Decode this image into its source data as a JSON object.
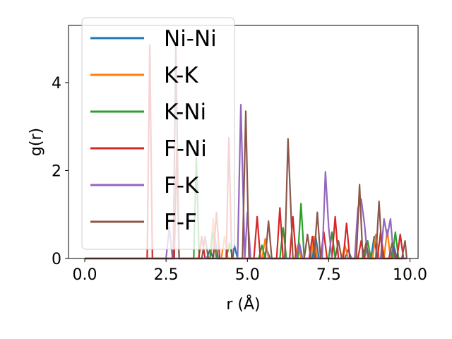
{
  "chart_data": {
    "type": "line",
    "title": "",
    "xlabel": "r (Å)",
    "ylabel": "g(r)",
    "xlim": [
      -0.5,
      10.25
    ],
    "ylim": [
      0,
      5.3
    ],
    "xticks": [
      0.0,
      2.5,
      5.0,
      7.5,
      10.0
    ],
    "xtick_labels": [
      "0.0",
      "2.5",
      "5.0",
      "7.5",
      "10.0"
    ],
    "yticks": [
      0,
      2,
      4
    ],
    "ytick_labels": [
      "0",
      "2",
      "4"
    ],
    "grid": false,
    "legend": "top-left",
    "series": [
      {
        "name": "Ni-Ni",
        "color": "#1f77b4",
        "points": [
          [
            0,
            0
          ],
          [
            3.75,
            0
          ],
          [
            3.85,
            0.2
          ],
          [
            3.95,
            0
          ],
          [
            4.0,
            0.5
          ],
          [
            4.1,
            0
          ],
          [
            4.55,
            0
          ],
          [
            4.6,
            0.3
          ],
          [
            4.7,
            0
          ],
          [
            5.5,
            0
          ],
          [
            5.6,
            0.2
          ],
          [
            5.7,
            0
          ],
          [
            6.5,
            0
          ],
          [
            6.6,
            0.25
          ],
          [
            6.7,
            0
          ],
          [
            7.0,
            0
          ],
          [
            7.1,
            0.5
          ],
          [
            7.2,
            0
          ],
          [
            8.0,
            0
          ],
          [
            8.1,
            0.2
          ],
          [
            8.2,
            0
          ],
          [
            8.8,
            0
          ],
          [
            8.9,
            0.5
          ],
          [
            9.0,
            0
          ],
          [
            9.4,
            0
          ],
          [
            9.5,
            0.3
          ],
          [
            9.6,
            0
          ],
          [
            9.9,
            0
          ]
        ]
      },
      {
        "name": "K-K",
        "color": "#ff7f0e",
        "points": [
          [
            0,
            0
          ],
          [
            3.85,
            0
          ],
          [
            3.95,
            0.9
          ],
          [
            4.05,
            0
          ],
          [
            4.2,
            0
          ],
          [
            4.3,
            0.5
          ],
          [
            4.4,
            0
          ],
          [
            5.45,
            0
          ],
          [
            5.55,
            0.45
          ],
          [
            5.65,
            0
          ],
          [
            6.45,
            0
          ],
          [
            6.55,
            0.3
          ],
          [
            6.65,
            0
          ],
          [
            6.95,
            0
          ],
          [
            7.05,
            0.5
          ],
          [
            7.15,
            0
          ],
          [
            7.9,
            0
          ],
          [
            8.0,
            0.3
          ],
          [
            8.1,
            0
          ],
          [
            8.85,
            0
          ],
          [
            8.95,
            0.55
          ],
          [
            9.05,
            0
          ],
          [
            9.2,
            0
          ],
          [
            9.3,
            0.65
          ],
          [
            9.4,
            0
          ],
          [
            9.8,
            0
          ]
        ]
      },
      {
        "name": "K-Ni",
        "color": "#2ca02c",
        "points": [
          [
            0,
            0
          ],
          [
            3.35,
            0
          ],
          [
            3.43,
            2.3
          ],
          [
            3.52,
            0
          ],
          [
            3.85,
            0
          ],
          [
            3.95,
            0.6
          ],
          [
            4.05,
            0
          ],
          [
            4.35,
            0
          ],
          [
            4.45,
            0.35
          ],
          [
            4.55,
            0
          ],
          [
            5.35,
            0
          ],
          [
            5.45,
            0.3
          ],
          [
            5.55,
            0
          ],
          [
            6.0,
            0
          ],
          [
            6.1,
            0.7
          ],
          [
            6.2,
            0
          ],
          [
            6.55,
            0
          ],
          [
            6.65,
            1.25
          ],
          [
            6.75,
            0
          ],
          [
            7.5,
            0
          ],
          [
            7.6,
            0.6
          ],
          [
            7.7,
            0
          ],
          [
            8.6,
            0
          ],
          [
            8.7,
            0.4
          ],
          [
            8.8,
            0
          ],
          [
            9.45,
            0
          ],
          [
            9.55,
            0.6
          ],
          [
            9.65,
            0
          ],
          [
            9.9,
            0
          ]
        ]
      },
      {
        "name": "F-Ni",
        "color": "#d62728",
        "points": [
          [
            0,
            0
          ],
          [
            1.92,
            0
          ],
          [
            2.0,
            4.85
          ],
          [
            2.08,
            0
          ],
          [
            2.75,
            0
          ],
          [
            2.83,
            2.5
          ],
          [
            2.9,
            0
          ],
          [
            3.5,
            0
          ],
          [
            3.6,
            0.5
          ],
          [
            3.7,
            0
          ],
          [
            3.95,
            0
          ],
          [
            4.05,
            1.05
          ],
          [
            4.15,
            0
          ],
          [
            4.35,
            0
          ],
          [
            4.43,
            2.75
          ],
          [
            4.52,
            0
          ],
          [
            5.2,
            0
          ],
          [
            5.3,
            0.95
          ],
          [
            5.4,
            0
          ],
          [
            5.9,
            0
          ],
          [
            6.0,
            1.15
          ],
          [
            6.1,
            0
          ],
          [
            6.3,
            0
          ],
          [
            6.4,
            0.95
          ],
          [
            6.5,
            0
          ],
          [
            6.9,
            0
          ],
          [
            7.0,
            0.5
          ],
          [
            7.1,
            0
          ],
          [
            7.25,
            0
          ],
          [
            7.35,
            0.6
          ],
          [
            7.45,
            0
          ],
          [
            7.6,
            0
          ],
          [
            7.7,
            0.95
          ],
          [
            7.8,
            0
          ],
          [
            7.95,
            0
          ],
          [
            8.05,
            0.8
          ],
          [
            8.15,
            0
          ],
          [
            8.4,
            0
          ],
          [
            8.5,
            0.4
          ],
          [
            8.6,
            0
          ],
          [
            9.0,
            0
          ],
          [
            9.1,
            0.6
          ],
          [
            9.2,
            0
          ],
          [
            9.6,
            0
          ],
          [
            9.7,
            0.55
          ],
          [
            9.8,
            0
          ]
        ]
      },
      {
        "name": "F-K",
        "color": "#9467bd",
        "points": [
          [
            0,
            0
          ],
          [
            2.5,
            0
          ],
          [
            2.6,
            0.7
          ],
          [
            2.7,
            0
          ],
          [
            4.7,
            0
          ],
          [
            4.8,
            3.5
          ],
          [
            4.92,
            0
          ],
          [
            5.0,
            1.05
          ],
          [
            5.1,
            0
          ],
          [
            6.5,
            0
          ],
          [
            6.6,
            0.35
          ],
          [
            6.7,
            0
          ],
          [
            7.3,
            0
          ],
          [
            7.4,
            1.97
          ],
          [
            7.5,
            0.7
          ],
          [
            7.6,
            0
          ],
          [
            8.3,
            0
          ],
          [
            8.4,
            1.15
          ],
          [
            8.5,
            1.35
          ],
          [
            8.6,
            0.8
          ],
          [
            8.7,
            0
          ],
          [
            9.1,
            0
          ],
          [
            9.2,
            0.9
          ],
          [
            9.3,
            0.5
          ],
          [
            9.4,
            0.9
          ],
          [
            9.5,
            0
          ],
          [
            9.9,
            0
          ]
        ]
      },
      {
        "name": "F-F",
        "color": "#8c564b",
        "points": [
          [
            0,
            0
          ],
          [
            2.72,
            0
          ],
          [
            2.8,
            4.85
          ],
          [
            2.9,
            0
          ],
          [
            3.6,
            0
          ],
          [
            3.7,
            0.5
          ],
          [
            3.8,
            0
          ],
          [
            4.85,
            0
          ],
          [
            4.95,
            3.35
          ],
          [
            5.05,
            0
          ],
          [
            5.55,
            0
          ],
          [
            5.65,
            0.85
          ],
          [
            5.75,
            0
          ],
          [
            6.15,
            0
          ],
          [
            6.25,
            2.72
          ],
          [
            6.4,
            0
          ],
          [
            6.75,
            0
          ],
          [
            6.85,
            0.55
          ],
          [
            6.95,
            0
          ],
          [
            7.05,
            0
          ],
          [
            7.15,
            1.05
          ],
          [
            7.25,
            0
          ],
          [
            7.7,
            0
          ],
          [
            7.8,
            0.4
          ],
          [
            7.9,
            0
          ],
          [
            8.35,
            0
          ],
          [
            8.45,
            1.68
          ],
          [
            8.55,
            0
          ],
          [
            8.65,
            0.35
          ],
          [
            8.75,
            0
          ],
          [
            8.95,
            0
          ],
          [
            9.05,
            1.3
          ],
          [
            9.15,
            0
          ],
          [
            9.35,
            0
          ],
          [
            9.45,
            0.35
          ],
          [
            9.55,
            0
          ],
          [
            9.75,
            0
          ],
          [
            9.85,
            0.4
          ],
          [
            9.9,
            0
          ]
        ]
      }
    ]
  }
}
